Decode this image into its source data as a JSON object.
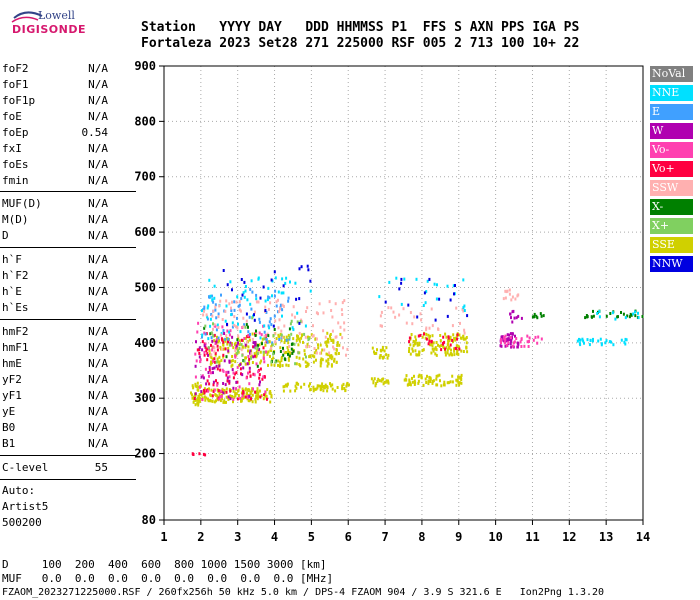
{
  "logo": {
    "line1": "Lowell",
    "line2": "DIGISONDE"
  },
  "header": {
    "row1": "Station   YYYY DAY   DDD HHMMSS P1  FFS S AXN PPS IGA PS",
    "row2": "Fortaleza 2023 Set28 271 225000 RSF 005 2 713 100 10+ 22"
  },
  "params": [
    {
      "name": "foF2",
      "value": "N/A"
    },
    {
      "name": "foF1",
      "value": "N/A"
    },
    {
      "name": "foF1p",
      "value": "N/A"
    },
    {
      "name": "foE",
      "value": "N/A"
    },
    {
      "name": "foEp",
      "value": "0.54"
    },
    {
      "name": "fxI",
      "value": "N/A"
    },
    {
      "name": "foEs",
      "value": "N/A"
    },
    {
      "name": "fmin",
      "value": "N/A"
    },
    {
      "name": "MUF(D)",
      "value": "N/A"
    },
    {
      "name": "M(D)",
      "value": "N/A"
    },
    {
      "name": "D",
      "value": "N/A"
    },
    {
      "name": "h`F",
      "value": "N/A"
    },
    {
      "name": "h`F2",
      "value": "N/A"
    },
    {
      "name": "h`E",
      "value": "N/A"
    },
    {
      "name": "h`Es",
      "value": "N/A"
    },
    {
      "name": "hmF2",
      "value": "N/A"
    },
    {
      "name": "hmF1",
      "value": "N/A"
    },
    {
      "name": "hmE",
      "value": "N/A"
    },
    {
      "name": "yF2",
      "value": "N/A"
    },
    {
      "name": "yF1",
      "value": "N/A"
    },
    {
      "name": "yE",
      "value": "N/A"
    },
    {
      "name": "B0",
      "value": "N/A"
    },
    {
      "name": "B1",
      "value": "N/A"
    },
    {
      "name": "C-level",
      "value": "55"
    }
  ],
  "autoscale": {
    "line1": "Auto:",
    "line2": "Artist5",
    "line3": "500200"
  },
  "footer": {
    "row1": "D     100  200  400  600  800 1000 1500 3000 [km]",
    "row2": "MUF   0.0  0.0  0.0  0.0  0.0  0.0  0.0  0.0 [MHz]",
    "row3": "FZAOM_2023271225000.RSF / 260fx256h 50 kHz 5.0 km / DPS-4 FZAOM 904 / 3.9 S 321.6 E   Ion2Png 1.3.20"
  },
  "legend": [
    {
      "label": "NoVal",
      "color": "#808080"
    },
    {
      "label": "NNE",
      "color": "#00e0ff"
    },
    {
      "label": "E",
      "color": "#40a0ff"
    },
    {
      "label": "W",
      "color": "#b000b0"
    },
    {
      "label": "Vo-",
      "color": "#ff40b0"
    },
    {
      "label": "Vo+",
      "color": "#ff0040"
    },
    {
      "label": "SSW",
      "color": "#ffb0b0"
    },
    {
      "label": "X-",
      "color": "#008000"
    },
    {
      "label": "X+",
      "color": "#80d060"
    },
    {
      "label": "SSE",
      "color": "#d0d000"
    },
    {
      "label": "NNW",
      "color": "#0000e0"
    }
  ],
  "chart_data": {
    "type": "scatter",
    "xlim": [
      1,
      14
    ],
    "ylim": [
      80,
      900
    ],
    "xticks": [
      1,
      2,
      3,
      4,
      5,
      6,
      7,
      8,
      9,
      10,
      11,
      12,
      13,
      14
    ],
    "yticks": [
      80,
      200,
      300,
      400,
      500,
      600,
      700,
      800,
      900
    ],
    "grid": true,
    "legend_position": "right",
    "clusters": [
      {
        "series": "SSE",
        "x": [
          1.7,
          2.0
        ],
        "y": [
          290,
          330
        ],
        "n": 40
      },
      {
        "series": "SSE",
        "x": [
          2.0,
          3.9
        ],
        "y": [
          295,
          320
        ],
        "n": 140
      },
      {
        "series": "SSE",
        "x": [
          2.2,
          5.8
        ],
        "y": [
          360,
          420
        ],
        "n": 260
      },
      {
        "series": "SSE",
        "x": [
          4.2,
          6.0
        ],
        "y": [
          315,
          330
        ],
        "n": 60
      },
      {
        "series": "SSE",
        "x": [
          6.6,
          7.1
        ],
        "y": [
          325,
          340
        ],
        "n": 20
      },
      {
        "series": "SSE",
        "x": [
          7.5,
          9.1
        ],
        "y": [
          325,
          345
        ],
        "n": 70
      },
      {
        "series": "SSE",
        "x": [
          6.6,
          7.1
        ],
        "y": [
          375,
          395
        ],
        "n": 20
      },
      {
        "series": "SSE",
        "x": [
          7.6,
          9.2
        ],
        "y": [
          380,
          420
        ],
        "n": 120
      },
      {
        "series": "Vo+",
        "x": [
          1.8,
          3.8
        ],
        "y": [
          300,
          420
        ],
        "n": 90
      },
      {
        "series": "Vo-",
        "x": [
          1.8,
          3.8
        ],
        "y": [
          300,
          440
        ],
        "n": 80
      },
      {
        "series": "W",
        "x": [
          1.8,
          3.6
        ],
        "y": [
          300,
          420
        ],
        "n": 60
      },
      {
        "series": "E",
        "x": [
          2.0,
          4.4
        ],
        "y": [
          400,
          500
        ],
        "n": 70
      },
      {
        "series": "NNE",
        "x": [
          2.0,
          5.0
        ],
        "y": [
          410,
          520
        ],
        "n": 60
      },
      {
        "series": "SSW",
        "x": [
          2.0,
          6.0
        ],
        "y": [
          380,
          480
        ],
        "n": 120
      },
      {
        "series": "X-",
        "x": [
          2.0,
          4.5
        ],
        "y": [
          360,
          440
        ],
        "n": 30
      },
      {
        "series": "X+",
        "x": [
          2.0,
          5.0
        ],
        "y": [
          360,
          450
        ],
        "n": 40
      },
      {
        "series": "NNW",
        "x": [
          2.5,
          5.0
        ],
        "y": [
          420,
          545
        ],
        "n": 25
      },
      {
        "series": "Vo+",
        "x": [
          7.6,
          9.0
        ],
        "y": [
          390,
          420
        ],
        "n": 25
      },
      {
        "series": "SSW",
        "x": [
          6.8,
          9.2
        ],
        "y": [
          420,
          470
        ],
        "n": 30
      },
      {
        "series": "NNE",
        "x": [
          6.8,
          9.2
        ],
        "y": [
          460,
          520
        ],
        "n": 20
      },
      {
        "series": "NNW",
        "x": [
          6.8,
          9.2
        ],
        "y": [
          440,
          520
        ],
        "n": 15
      },
      {
        "series": "W",
        "x": [
          10.1,
          10.6
        ],
        "y": [
          395,
          420
        ],
        "n": 45
      },
      {
        "series": "Vo-",
        "x": [
          10.0,
          11.3
        ],
        "y": [
          395,
          415
        ],
        "n": 30
      },
      {
        "series": "SSW",
        "x": [
          10.1,
          10.6
        ],
        "y": [
          480,
          500
        ],
        "n": 12
      },
      {
        "series": "W",
        "x": [
          10.1,
          10.7
        ],
        "y": [
          440,
          460
        ],
        "n": 10
      },
      {
        "series": "X-",
        "x": [
          10.9,
          11.3
        ],
        "y": [
          448,
          456
        ],
        "n": 8
      },
      {
        "series": "NNE",
        "x": [
          12.2,
          13.6
        ],
        "y": [
          398,
          410
        ],
        "n": 30
      },
      {
        "series": "X-",
        "x": [
          12.3,
          14.0
        ],
        "y": [
          448,
          460
        ],
        "n": 25
      },
      {
        "series": "NNE",
        "x": [
          12.3,
          14.0
        ],
        "y": [
          445,
          460
        ],
        "n": 10
      },
      {
        "series": "Vo+",
        "x": [
          1.7,
          2.1
        ],
        "y": [
          199,
          203
        ],
        "n": 6
      }
    ]
  }
}
